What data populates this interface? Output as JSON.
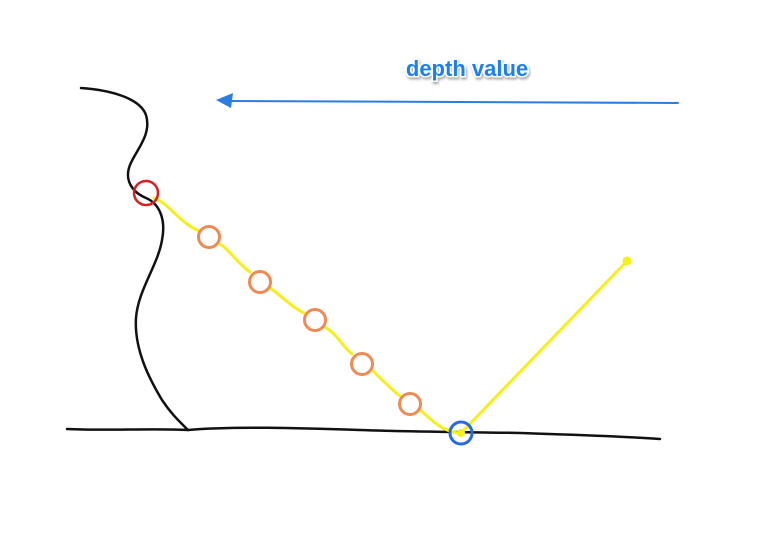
{
  "labels": {
    "depth_label": "depth value"
  },
  "colors": {
    "background": "#ffffff",
    "line_black": "#111111",
    "arrow_blue": "#2b7de0",
    "label_blue": "#1a7ff0",
    "ray_yellow": "#f5ef1a",
    "marker_red": "#d81f1f",
    "marker_orange": "#ef8a55",
    "marker_blue": "#2a6ae0"
  }
}
